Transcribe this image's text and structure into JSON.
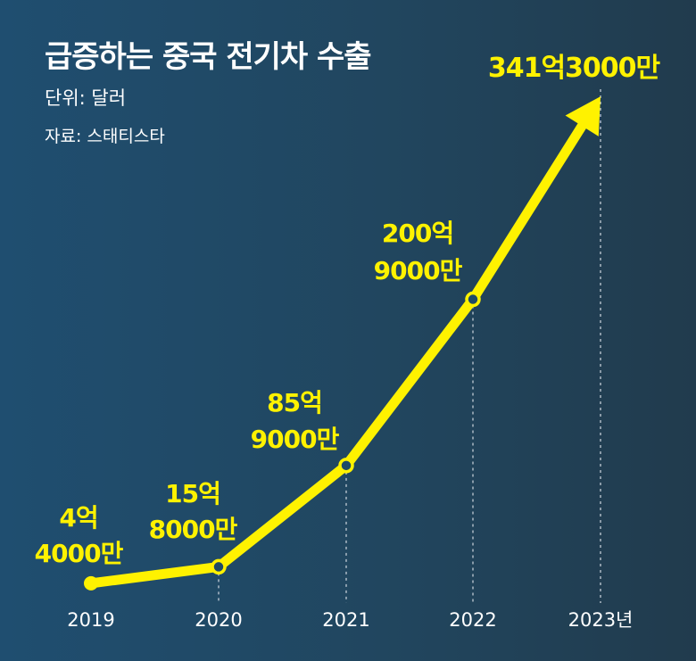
{
  "title": "급증하는 중국 전기차 수출",
  "unit": "단위: 달러",
  "source": "자료: 스태티스타",
  "colors": {
    "line": "#fff200",
    "label": "#fff200",
    "axis_text": "#ffffff",
    "guide": "#d0d8e0"
  },
  "chart_data": {
    "type": "line",
    "x": [
      "2019",
      "2020",
      "2021",
      "2022",
      "2023년"
    ],
    "values": [
      4.4,
      15.8,
      85.9,
      200.9,
      341.3
    ],
    "value_labels": [
      [
        "4억",
        "4000만"
      ],
      [
        "15억",
        "8000만"
      ],
      [
        "85억",
        "9000만"
      ],
      [
        "200억",
        "9000만"
      ],
      [
        "341억3000만"
      ]
    ],
    "final_point_marker": "arrow",
    "title": "급증하는 중국 전기차 수출",
    "ylabel": "",
    "xlabel": ""
  }
}
